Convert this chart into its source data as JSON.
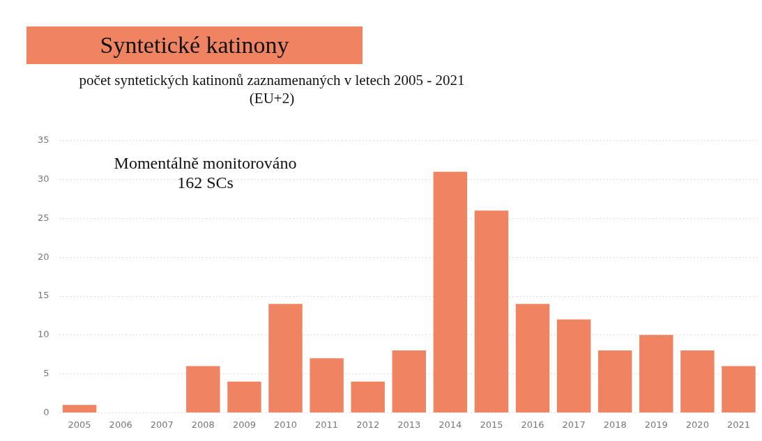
{
  "chart_data": {
    "type": "bar",
    "title": "Syntetické katinony",
    "subtitle": "počet syntetických katinonů zaznamenaných v letech 2005 - 2021\n(EU+2)",
    "categories": [
      "2005",
      "2006",
      "2007",
      "2008",
      "2009",
      "2010",
      "2011",
      "2012",
      "2013",
      "2014",
      "2015",
      "2016",
      "2017",
      "2018",
      "2019",
      "2020",
      "2021"
    ],
    "values": [
      1,
      0,
      0,
      6,
      4,
      14,
      7,
      4,
      8,
      31,
      26,
      14,
      12,
      8,
      10,
      8,
      6
    ],
    "color": "#f08462",
    "ylim": [
      0,
      35
    ],
    "yticks": [
      0,
      5,
      10,
      15,
      20,
      25,
      30,
      35
    ],
    "grid": "y",
    "legend": false,
    "annotations": [
      "Momentálně monitorováno\n162 SCs"
    ]
  }
}
